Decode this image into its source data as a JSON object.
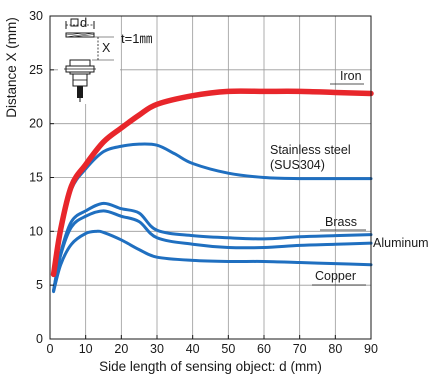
{
  "chart_data": {
    "type": "line",
    "title": "",
    "xlabel": "Side length of sensing object: d (mm)",
    "ylabel": "Distance X (mm)",
    "xlim": [
      0,
      90
    ],
    "ylim": [
      0,
      30
    ],
    "xticks": [
      0,
      10,
      20,
      30,
      40,
      50,
      60,
      70,
      80,
      90
    ],
    "yticks": [
      0,
      5,
      10,
      15,
      20,
      25,
      30
    ],
    "grid": true,
    "series": [
      {
        "name": "Iron",
        "label_lines": [
          "Iron"
        ],
        "color": "#e8262b",
        "emphasis": true,
        "x": [
          1,
          3,
          6,
          10,
          15,
          20,
          25,
          30,
          40,
          50,
          60,
          70,
          80,
          90
        ],
        "y": [
          6,
          10.2,
          14.2,
          16.2,
          18.3,
          19.6,
          20.8,
          21.8,
          22.6,
          23.0,
          23.0,
          23.0,
          22.9,
          22.8
        ]
      },
      {
        "name": "Stainless steel (SUS304)",
        "label_lines": [
          "Stainless steel",
          "(SUS304)"
        ],
        "color": "#1f6fc0",
        "x": [
          1,
          3,
          6,
          10,
          15,
          20,
          25,
          30,
          35,
          40,
          50,
          60,
          70,
          80,
          90
        ],
        "y": [
          6,
          10,
          13.9,
          15.8,
          17.4,
          17.9,
          18.1,
          18.0,
          17.2,
          16.3,
          15.4,
          15.0,
          14.9,
          14.9,
          14.9
        ]
      },
      {
        "name": "Brass",
        "label_lines": [
          "Brass"
        ],
        "color": "#1f6fc0",
        "x": [
          1,
          3,
          6,
          10,
          15,
          20,
          25,
          30,
          40,
          50,
          60,
          70,
          80,
          90
        ],
        "y": [
          4.5,
          8,
          10.9,
          11.9,
          12.6,
          12.1,
          11.7,
          10.1,
          9.6,
          9.4,
          9.3,
          9.5,
          9.6,
          9.7
        ]
      },
      {
        "name": "Aluminum",
        "label_lines": [
          "Aluminum"
        ],
        "color": "#1f6fc0",
        "x": [
          1,
          3,
          6,
          10,
          15,
          20,
          25,
          30,
          40,
          50,
          60,
          70,
          80,
          90
        ],
        "y": [
          4.5,
          7.8,
          10.4,
          11.4,
          11.9,
          11.4,
          10.9,
          9.4,
          8.8,
          8.5,
          8.5,
          8.7,
          8.8,
          8.9
        ]
      },
      {
        "name": "Copper",
        "label_lines": [
          "Copper"
        ],
        "color": "#1f6fc0",
        "x": [
          1,
          3,
          6,
          10,
          13,
          15,
          20,
          25,
          30,
          40,
          50,
          60,
          70,
          80,
          90
        ],
        "y": [
          4.4,
          6.9,
          8.8,
          9.8,
          10.0,
          9.9,
          9.2,
          8.3,
          7.6,
          7.3,
          7.2,
          7.2,
          7.1,
          7.0,
          6.9
        ]
      }
    ],
    "inset": {
      "label_d": "d",
      "label_x": "X",
      "note": "t=1㎜"
    }
  }
}
